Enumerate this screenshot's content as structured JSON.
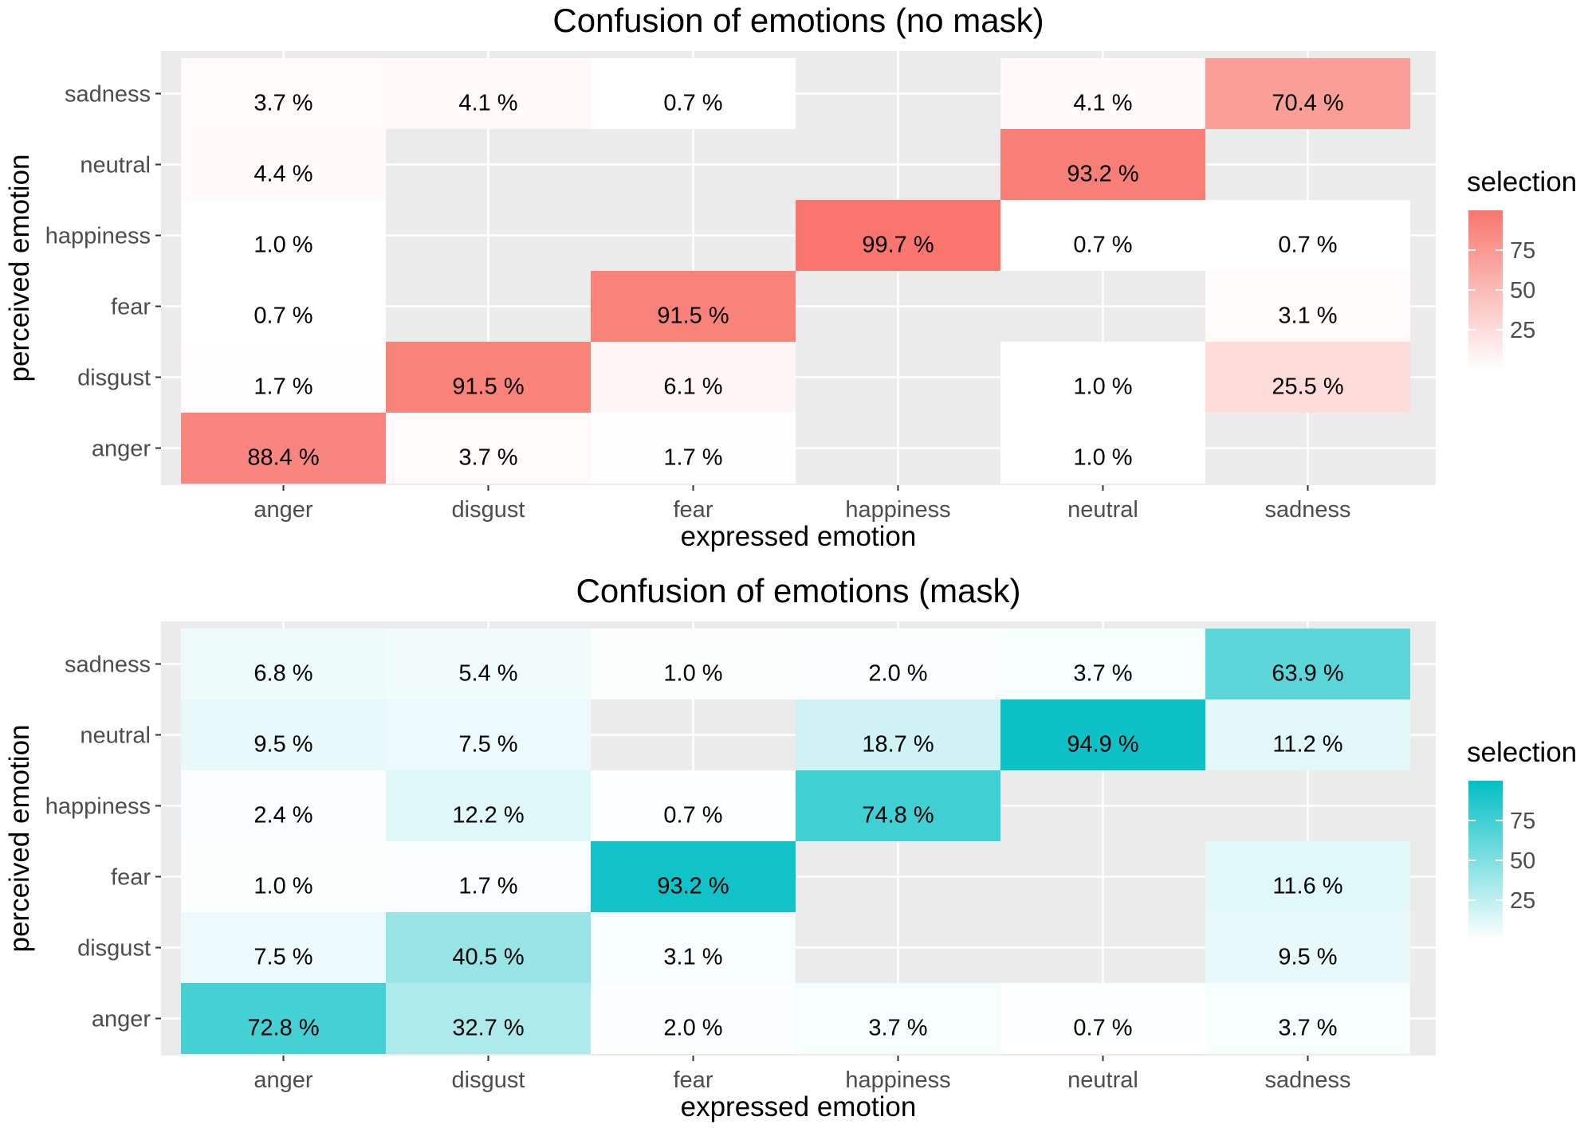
{
  "chart_data": [
    {
      "type": "heatmap",
      "title": "Confusion of emotions (no mask)",
      "xlabel": "expressed emotion",
      "ylabel": "perceived emotion",
      "x_categories": [
        "anger",
        "disgust",
        "fear",
        "happiness",
        "neutral",
        "sadness"
      ],
      "y_categories": [
        "anger",
        "disgust",
        "fear",
        "happiness",
        "neutral",
        "sadness"
      ],
      "cells": [
        {
          "x": "anger",
          "y": "anger",
          "value": 88.4,
          "label": "88.4 %"
        },
        {
          "x": "disgust",
          "y": "anger",
          "value": 3.7,
          "label": "3.7 %"
        },
        {
          "x": "fear",
          "y": "anger",
          "value": 1.7,
          "label": "1.7 %"
        },
        {
          "x": "neutral",
          "y": "anger",
          "value": 1.0,
          "label": "1.0 %"
        },
        {
          "x": "anger",
          "y": "disgust",
          "value": 1.7,
          "label": "1.7 %"
        },
        {
          "x": "disgust",
          "y": "disgust",
          "value": 91.5,
          "label": "91.5 %"
        },
        {
          "x": "fear",
          "y": "disgust",
          "value": 6.1,
          "label": "6.1 %"
        },
        {
          "x": "neutral",
          "y": "disgust",
          "value": 1.0,
          "label": "1.0 %"
        },
        {
          "x": "sadness",
          "y": "disgust",
          "value": 25.5,
          "label": "25.5 %"
        },
        {
          "x": "anger",
          "y": "fear",
          "value": 0.7,
          "label": "0.7 %"
        },
        {
          "x": "fear",
          "y": "fear",
          "value": 91.5,
          "label": "91.5 %"
        },
        {
          "x": "sadness",
          "y": "fear",
          "value": 3.1,
          "label": "3.1 %"
        },
        {
          "x": "anger",
          "y": "happiness",
          "value": 1.0,
          "label": "1.0 %"
        },
        {
          "x": "happiness",
          "y": "happiness",
          "value": 99.7,
          "label": "99.7 %"
        },
        {
          "x": "neutral",
          "y": "happiness",
          "value": 0.7,
          "label": "0.7 %"
        },
        {
          "x": "sadness",
          "y": "happiness",
          "value": 0.7,
          "label": "0.7 %"
        },
        {
          "x": "anger",
          "y": "neutral",
          "value": 4.4,
          "label": "4.4 %"
        },
        {
          "x": "neutral",
          "y": "neutral",
          "value": 93.2,
          "label": "93.2 %"
        },
        {
          "x": "anger",
          "y": "sadness",
          "value": 3.7,
          "label": "3.7 %"
        },
        {
          "x": "disgust",
          "y": "sadness",
          "value": 4.1,
          "label": "4.1 %"
        },
        {
          "x": "fear",
          "y": "sadness",
          "value": 0.7,
          "label": "0.7 %"
        },
        {
          "x": "neutral",
          "y": "sadness",
          "value": 4.1,
          "label": "4.1 %"
        },
        {
          "x": "sadness",
          "y": "sadness",
          "value": 70.4,
          "label": "70.4 %"
        }
      ],
      "legend": {
        "title": "selection",
        "ticks": [
          25,
          50,
          75
        ],
        "range": [
          0,
          100
        ],
        "low_color": "#ffffff",
        "high_color": "#f8766d"
      },
      "colors": {
        "panel_bg": "#ebebeb",
        "grid": "#ffffff"
      }
    },
    {
      "type": "heatmap",
      "title": "Confusion of emotions (mask)",
      "xlabel": "expressed emotion",
      "ylabel": "perceived emotion",
      "x_categories": [
        "anger",
        "disgust",
        "fear",
        "happiness",
        "neutral",
        "sadness"
      ],
      "y_categories": [
        "anger",
        "disgust",
        "fear",
        "happiness",
        "neutral",
        "sadness"
      ],
      "cells": [
        {
          "x": "anger",
          "y": "anger",
          "value": 72.8,
          "label": "72.8 %"
        },
        {
          "x": "disgust",
          "y": "anger",
          "value": 32.7,
          "label": "32.7 %"
        },
        {
          "x": "fear",
          "y": "anger",
          "value": 2.0,
          "label": "2.0 %"
        },
        {
          "x": "happiness",
          "y": "anger",
          "value": 3.7,
          "label": "3.7 %"
        },
        {
          "x": "neutral",
          "y": "anger",
          "value": 0.7,
          "label": "0.7 %"
        },
        {
          "x": "sadness",
          "y": "anger",
          "value": 3.7,
          "label": "3.7 %"
        },
        {
          "x": "anger",
          "y": "disgust",
          "value": 7.5,
          "label": "7.5 %"
        },
        {
          "x": "disgust",
          "y": "disgust",
          "value": 40.5,
          "label": "40.5 %"
        },
        {
          "x": "fear",
          "y": "disgust",
          "value": 3.1,
          "label": "3.1 %"
        },
        {
          "x": "sadness",
          "y": "disgust",
          "value": 9.5,
          "label": "9.5 %"
        },
        {
          "x": "anger",
          "y": "fear",
          "value": 1.0,
          "label": "1.0 %"
        },
        {
          "x": "disgust",
          "y": "fear",
          "value": 1.7,
          "label": "1.7 %"
        },
        {
          "x": "fear",
          "y": "fear",
          "value": 93.2,
          "label": "93.2 %"
        },
        {
          "x": "sadness",
          "y": "fear",
          "value": 11.6,
          "label": "11.6 %"
        },
        {
          "x": "anger",
          "y": "happiness",
          "value": 2.4,
          "label": "2.4 %"
        },
        {
          "x": "disgust",
          "y": "happiness",
          "value": 12.2,
          "label": "12.2 %"
        },
        {
          "x": "fear",
          "y": "happiness",
          "value": 0.7,
          "label": "0.7 %"
        },
        {
          "x": "happiness",
          "y": "happiness",
          "value": 74.8,
          "label": "74.8 %"
        },
        {
          "x": "anger",
          "y": "neutral",
          "value": 9.5,
          "label": "9.5 %"
        },
        {
          "x": "disgust",
          "y": "neutral",
          "value": 7.5,
          "label": "7.5 %"
        },
        {
          "x": "happiness",
          "y": "neutral",
          "value": 18.7,
          "label": "18.7 %"
        },
        {
          "x": "neutral",
          "y": "neutral",
          "value": 94.9,
          "label": "94.9 %"
        },
        {
          "x": "sadness",
          "y": "neutral",
          "value": 11.2,
          "label": "11.2 %"
        },
        {
          "x": "anger",
          "y": "sadness",
          "value": 6.8,
          "label": "6.8 %"
        },
        {
          "x": "disgust",
          "y": "sadness",
          "value": 5.4,
          "label": "5.4 %"
        },
        {
          "x": "fear",
          "y": "sadness",
          "value": 1.0,
          "label": "1.0 %"
        },
        {
          "x": "happiness",
          "y": "sadness",
          "value": 2.0,
          "label": "2.0 %"
        },
        {
          "x": "neutral",
          "y": "sadness",
          "value": 3.7,
          "label": "3.7 %"
        },
        {
          "x": "sadness",
          "y": "sadness",
          "value": 63.9,
          "label": "63.9 %"
        }
      ],
      "legend": {
        "title": "selection",
        "ticks": [
          25,
          50,
          75
        ],
        "range": [
          0,
          100
        ],
        "low_color": "#ffffff",
        "high_color": "#00bfc4"
      },
      "colors": {
        "panel_bg": "#ebebeb",
        "grid": "#ffffff"
      }
    }
  ]
}
